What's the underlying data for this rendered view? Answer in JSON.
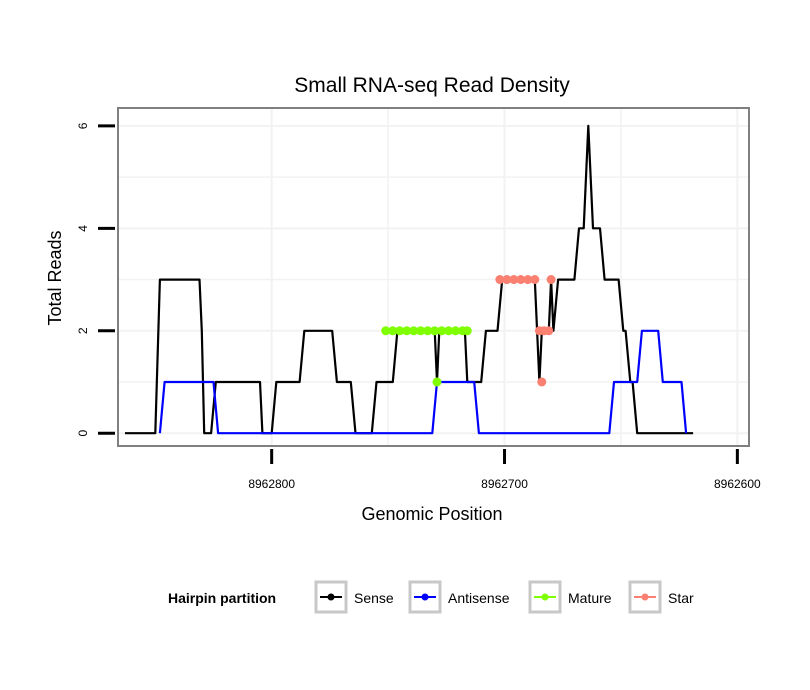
{
  "chart_data": {
    "type": "line",
    "title": "Small RNA-seq Read Density",
    "xlabel": "Genomic Position",
    "ylabel": "Total Reads",
    "xlim": [
      8962866,
      8962595
    ],
    "x_reversed": true,
    "ylim": [
      -0.25,
      6.35
    ],
    "x_ticks": [
      8962800,
      8962700,
      8962600
    ],
    "x_tick_labels": [
      "8962800",
      "8962700",
      "8962600"
    ],
    "y_ticks": [
      0,
      2,
      4,
      6
    ],
    "y_tick_labels": [
      "0",
      "2",
      "4",
      "6"
    ],
    "grid": true,
    "legend": {
      "title": "Hairpin partition",
      "position": "bottom",
      "entries": [
        "Sense",
        "Antisense",
        "Mature",
        "Star"
      ]
    },
    "series": [
      {
        "name": "Sense",
        "color": "#000000",
        "style": "line",
        "points": [
          [
            8962863,
            0
          ],
          [
            8962850,
            0
          ],
          [
            8962848,
            3
          ],
          [
            8962831,
            3
          ],
          [
            8962830,
            2
          ],
          [
            8962829,
            0
          ],
          [
            8962826,
            0
          ],
          [
            8962824,
            1
          ],
          [
            8962805,
            1
          ],
          [
            8962804,
            0
          ],
          [
            8962800,
            0
          ],
          [
            8962798,
            1
          ],
          [
            8962788,
            1
          ],
          [
            8962786,
            2
          ],
          [
            8962774,
            2
          ],
          [
            8962772,
            1
          ],
          [
            8962766,
            1
          ],
          [
            8962764,
            0
          ],
          [
            8962757,
            0
          ],
          [
            8962755,
            1
          ],
          [
            8962748,
            1
          ],
          [
            8962746,
            2
          ],
          [
            8962730,
            2
          ],
          [
            8962729,
            1
          ],
          [
            8962728,
            2
          ],
          [
            8962717,
            2
          ],
          [
            8962716,
            1
          ],
          [
            8962710,
            1
          ],
          [
            8962708,
            2
          ],
          [
            8962703,
            2
          ],
          [
            8962701,
            3
          ],
          [
            8962687,
            3
          ],
          [
            8962686,
            2
          ],
          [
            8962685,
            1
          ],
          [
            8962684,
            2
          ],
          [
            8962681,
            2
          ],
          [
            8962680,
            3
          ],
          [
            8962679,
            2
          ],
          [
            8962677,
            3
          ],
          [
            8962670,
            3
          ],
          [
            8962668,
            4
          ],
          [
            8962666,
            4
          ],
          [
            8962664,
            6
          ],
          [
            8962662,
            4
          ],
          [
            8962659,
            4
          ],
          [
            8962657,
            3
          ],
          [
            8962651,
            3
          ],
          [
            8962649,
            2
          ],
          [
            8962648,
            2
          ],
          [
            8962646,
            1
          ],
          [
            8962645,
            1
          ],
          [
            8962643,
            0
          ],
          [
            8962619,
            0
          ]
        ]
      },
      {
        "name": "Antisense",
        "color": "#0000ff",
        "style": "line",
        "points": [
          [
            8962848,
            0
          ],
          [
            8962846,
            1
          ],
          [
            8962825,
            1
          ],
          [
            8962823,
            0
          ],
          [
            8962731,
            0
          ],
          [
            8962729,
            1
          ],
          [
            8962713,
            1
          ],
          [
            8962711,
            0
          ],
          [
            8962655,
            0
          ],
          [
            8962653,
            1
          ],
          [
            8962643,
            1
          ],
          [
            8962641,
            2
          ],
          [
            8962634,
            2
          ],
          [
            8962632,
            1
          ],
          [
            8962624,
            1
          ],
          [
            8962622,
            0
          ]
        ]
      },
      {
        "name": "Mature",
        "color": "#7fff00",
        "style": "points",
        "points": [
          [
            8962751,
            2
          ],
          [
            8962748,
            2
          ],
          [
            8962745,
            2
          ],
          [
            8962742,
            2
          ],
          [
            8962739,
            2
          ],
          [
            8962736,
            2
          ],
          [
            8962733,
            2
          ],
          [
            8962730,
            2
          ],
          [
            8962729,
            1
          ],
          [
            8962727,
            2
          ],
          [
            8962724,
            2
          ],
          [
            8962721,
            2
          ],
          [
            8962718,
            2
          ],
          [
            8962716,
            2
          ]
        ]
      },
      {
        "name": "Star",
        "color": "#fa8072",
        "style": "points",
        "points": [
          [
            8962702,
            3
          ],
          [
            8962699,
            3
          ],
          [
            8962696,
            3
          ],
          [
            8962693,
            3
          ],
          [
            8962690,
            3
          ],
          [
            8962687,
            3
          ],
          [
            8962685,
            2
          ],
          [
            8962684,
            1
          ],
          [
            8962683,
            2
          ],
          [
            8962681,
            2
          ],
          [
            8962680,
            3
          ]
        ]
      }
    ]
  }
}
